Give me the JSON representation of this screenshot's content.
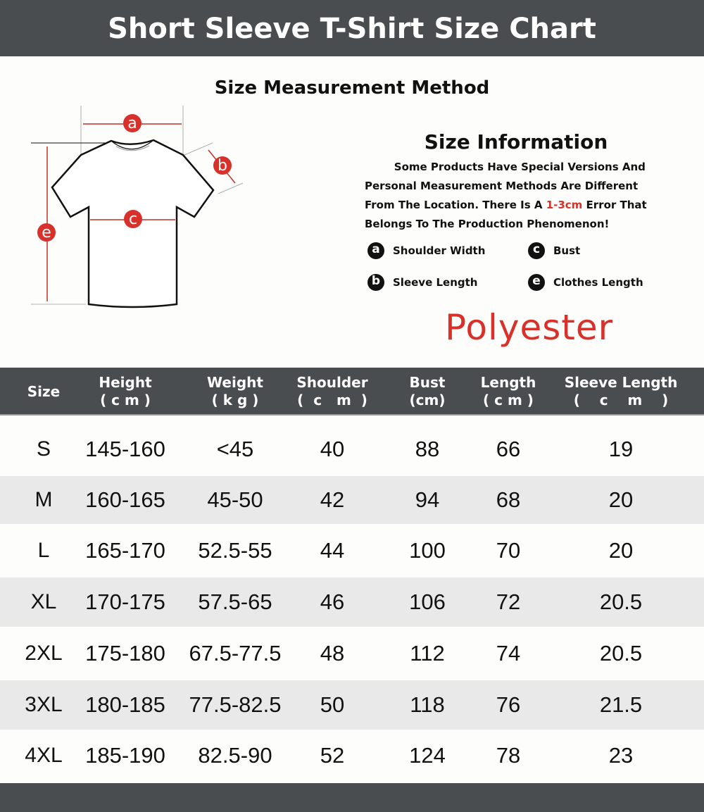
{
  "title": "Short Sleeve T-Shirt Size Chart",
  "method_title": "Size Measurement Method",
  "diagram_labels": {
    "a": "a",
    "b": "b",
    "c": "c",
    "e": "e"
  },
  "info": {
    "title": "Size Information",
    "line1": "Some Products Have Special Versions And",
    "line2": "Personal Measurement Methods Are Different",
    "line3a": "From The Location. There Is A ",
    "line3b": "1-3cm",
    "line3c": " Error That",
    "line4": "Belongs To The Production Phenomenon!"
  },
  "legend": [
    {
      "key": "a",
      "label": "Shoulder Width"
    },
    {
      "key": "c",
      "label": "Bust"
    },
    {
      "key": "b",
      "label": "Sleeve Length"
    },
    {
      "key": "e",
      "label": "Clothes Length"
    }
  ],
  "material": "Polyester",
  "colors": {
    "dark_bar": "#4a4d50",
    "accent_red": "#d8302a",
    "alt_row": "#e9e9e9"
  },
  "table": {
    "headers": [
      "Size",
      "Height\n( c m )",
      "Weight\n( k g )",
      "Shoulder\n(  c   m  )",
      "Bust\n(cm)",
      "Length\n( c m )",
      "Sleeve Length\n(    c    m    )"
    ],
    "rows": [
      [
        "S",
        "145-160",
        "<45",
        "40",
        "88",
        "66",
        "19"
      ],
      [
        "M",
        "160-165",
        "45-50",
        "42",
        "94",
        "68",
        "20"
      ],
      [
        "L",
        "165-170",
        "52.5-55",
        "44",
        "100",
        "70",
        "20"
      ],
      [
        "XL",
        "170-175",
        "57.5-65",
        "46",
        "106",
        "72",
        "20.5"
      ],
      [
        "2XL",
        "175-180",
        "67.5-77.5",
        "48",
        "112",
        "74",
        "20.5"
      ],
      [
        "3XL",
        "180-185",
        "77.5-82.5",
        "50",
        "118",
        "76",
        "21.5"
      ],
      [
        "4XL",
        "185-190",
        "82.5-90",
        "52",
        "124",
        "78",
        "23"
      ]
    ]
  }
}
